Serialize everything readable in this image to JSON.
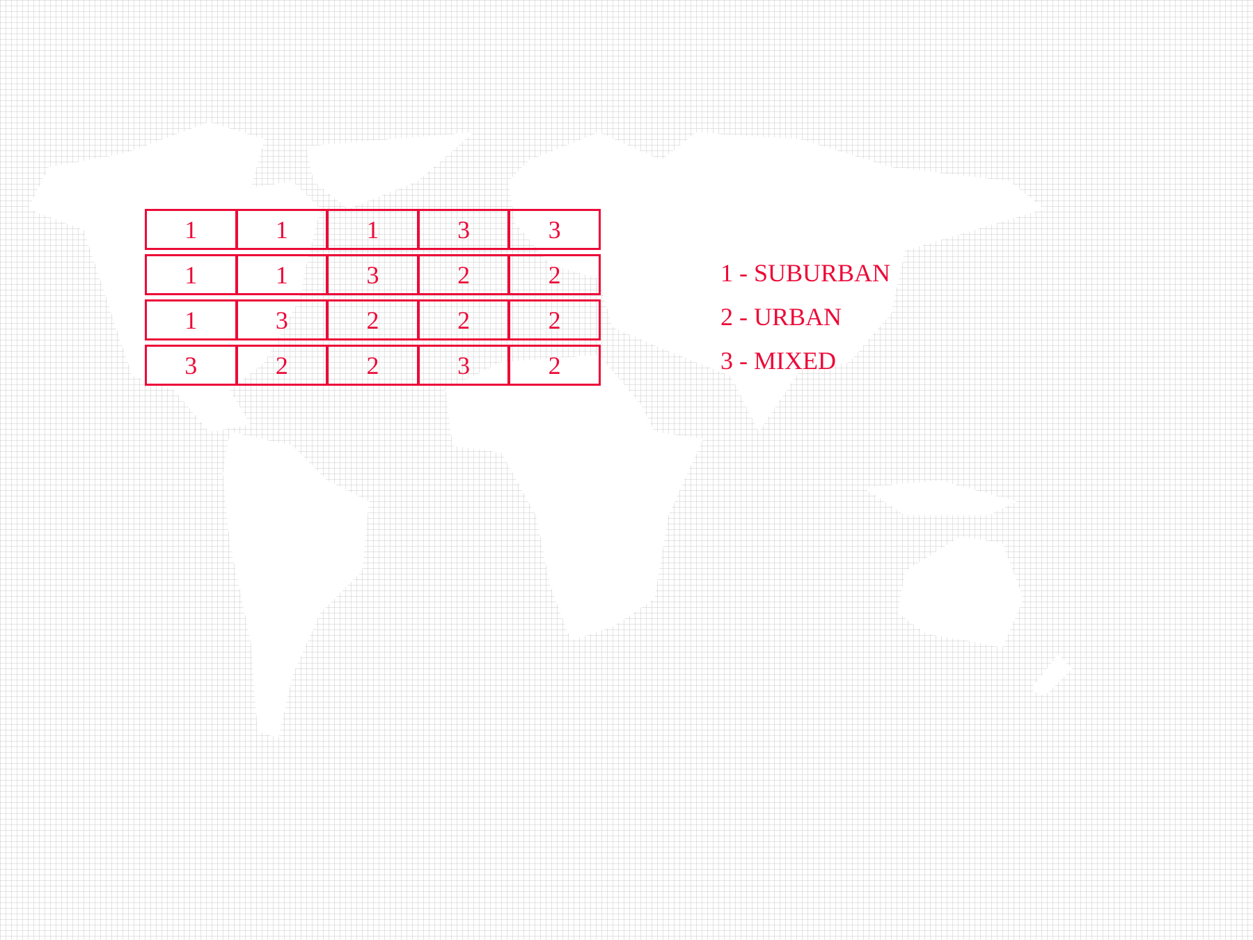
{
  "colors": {
    "accent": "#ec0a38",
    "grid": "#c8c8c8",
    "land": "#ffffff"
  },
  "table": {
    "rows": [
      [
        "1",
        "1",
        "1",
        "3",
        "3"
      ],
      [
        "1",
        "1",
        "3",
        "2",
        "2"
      ],
      [
        "1",
        "3",
        "2",
        "2",
        "2"
      ],
      [
        "3",
        "2",
        "2",
        "3",
        "2"
      ]
    ]
  },
  "legend": {
    "items": [
      "1 - SUBURBAN",
      "2 - URBAN",
      "3 - MIXED"
    ]
  }
}
